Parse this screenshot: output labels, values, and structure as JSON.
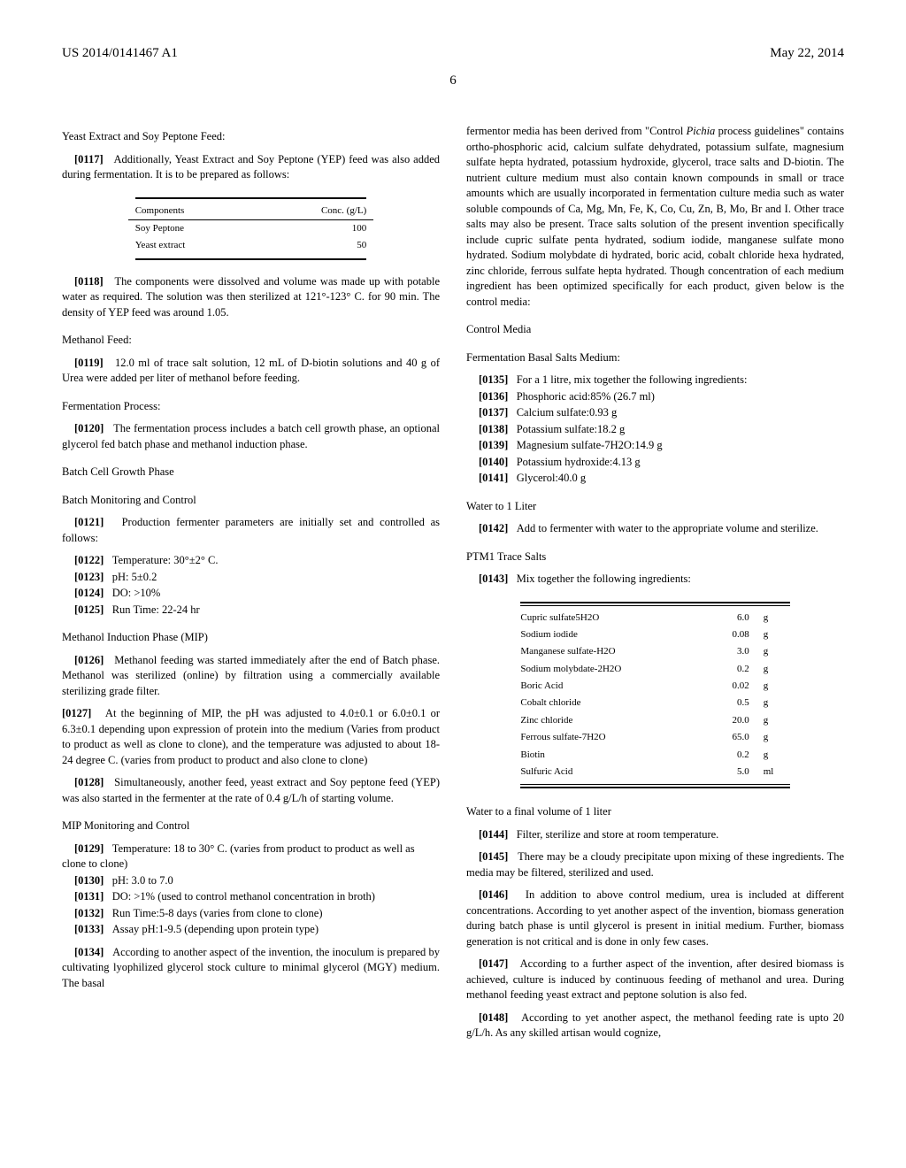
{
  "header": {
    "left": "US 2014/0141467 A1",
    "right": "May 22, 2014"
  },
  "page_number": "6",
  "left_column": {
    "s1_heading": "Yeast Extract and Soy Peptone Feed:",
    "p0117_num": "[0117]",
    "p0117": "Additionally, Yeast Extract and Soy Peptone (YEP) feed was also added during fermentation. It is to be prepared as follows:",
    "table1": {
      "col1": "Components",
      "col2": "Conc. (g/L)",
      "rows": [
        {
          "c1": "Soy Peptone",
          "c2": "100"
        },
        {
          "c1": "Yeast extract",
          "c2": "50"
        }
      ]
    },
    "p0118_num": "[0118]",
    "p0118": "The components were dissolved and volume was made up with potable water as required. The solution was then sterilized at 121°-123° C. for 90 min. The density of YEP feed was around 1.05.",
    "s2_heading": "Methanol Feed:",
    "p0119_num": "[0119]",
    "p0119": "12.0 ml of trace salt solution, 12 mL of D-biotin solutions and 40 g of Urea were added per liter of methanol before feeding.",
    "s3_heading": "Fermentation Process:",
    "p0120_num": "[0120]",
    "p0120": "The fermentation process includes a batch cell growth phase, an optional glycerol fed batch phase and methanol induction phase.",
    "s4_heading": "Batch Cell Growth Phase",
    "s5_heading": "Batch Monitoring and Control",
    "p0121_num": "[0121]",
    "p0121": "Production fermenter parameters are initially set and controlled as follows:",
    "p0122_num": "[0122]",
    "p0122": "Temperature: 30°±2° C.",
    "p0123_num": "[0123]",
    "p0123": "pH: 5±0.2",
    "p0124_num": "[0124]",
    "p0124": "DO: >10%",
    "p0125_num": "[0125]",
    "p0125": "Run Time: 22-24 hr",
    "s6_heading": "Methanol Induction Phase (MIP)",
    "p0126_num": "[0126]",
    "p0126": "Methanol feeding was started immediately after the end of Batch phase. Methanol was sterilized (online) by filtration using a commercially available sterilizing grade filter.",
    "p0127_num": "[0127]",
    "p0127": "At the beginning of MIP, the pH was adjusted to 4.0±0.1 or 6.0±0.1 or 6.3±0.1 depending upon expression of protein into the medium (Varies from product to product as well as clone to clone), and the temperature was adjusted to about 18-24 degree C. (varies from product to product and also clone to clone)",
    "p0128_num": "[0128]",
    "p0128": "Simultaneously, another feed, yeast extract and Soy peptone feed (YEP) was also started in the fermenter at the rate of 0.4 g/L/h of starting volume.",
    "s7_heading": "MIP Monitoring and Control",
    "p0129_num": "[0129]",
    "p0129": "Temperature: 18 to 30° C. (varies from product to product as well as clone to clone)",
    "p0130_num": "[0130]",
    "p0130": "pH: 3.0 to 7.0",
    "p0131_num": "[0131]",
    "p0131": "DO: >1% (used to control methanol concentration in broth)",
    "p0132_num": "[0132]",
    "p0132": "Run Time:5-8 days (varies from clone to clone)",
    "p0133_num": "[0133]",
    "p0133": "Assay pH:1-9.5 (depending upon protein type)",
    "p0134_num": "[0134]",
    "p0134": "According to another aspect of the invention, the inoculum is prepared by cultivating lyophilized glycerol stock culture to minimal glycerol (MGY) medium. The basal"
  },
  "right_column": {
    "p_cont_a": "fermentor media has been derived from \"Control ",
    "p_cont_italic": "Pichia",
    "p_cont_b": " process guidelines\" contains ortho-phosphoric acid, calcium sulfate dehydrated, potassium sulfate, magnesium sulfate hepta hydrated, potassium hydroxide, glycerol, trace salts and D-biotin. The nutrient culture medium must also contain known compounds in small or trace amounts which are usually incorporated in fermentation culture media such as water soluble compounds of Ca, Mg, Mn, Fe, K, Co, Cu, Zn, B, Mo, Br and I. Other trace salts may also be present. Trace salts solution of the present invention specifically include cupric sulfate penta hydrated, sodium iodide, manganese sulfate mono hydrated. Sodium molybdate di hydrated, boric acid, cobalt chloride hexa hydrated, zinc chloride, ferrous sulfate hepta hydrated. Though concentration of each medium ingredient has been optimized specifically for each product, given below is the control media:",
    "s1_heading": "Control Media",
    "s2_heading": "Fermentation Basal Salts Medium:",
    "p0135_num": "[0135]",
    "p0135": "For a 1 litre, mix together the following ingredients:",
    "p0136_num": "[0136]",
    "p0136": "Phosphoric acid:85% (26.7 ml)",
    "p0137_num": "[0137]",
    "p0137": "Calcium sulfate:0.93 g",
    "p0138_num": "[0138]",
    "p0138": "Potassium sulfate:18.2 g",
    "p0139_num": "[0139]",
    "p0139": "Magnesium sulfate-7H2O:14.9 g",
    "p0140_num": "[0140]",
    "p0140": "Potassium hydroxide:4.13 g",
    "p0141_num": "[0141]",
    "p0141": "Glycerol:40.0 g",
    "s3_heading": "Water to 1 Liter",
    "p0142_num": "[0142]",
    "p0142": "Add to fermenter with water to the appropriate volume and sterilize.",
    "s4_heading": "PTM1 Trace Salts",
    "p0143_num": "[0143]",
    "p0143": "Mix together the following ingredients:",
    "table2": {
      "rows": [
        {
          "c1": "Cupric sulfate5H2O",
          "c2": "6.0",
          "c3": "g"
        },
        {
          "c1": "Sodium iodide",
          "c2": "0.08",
          "c3": "g"
        },
        {
          "c1": "Manganese sulfate-H2O",
          "c2": "3.0",
          "c3": "g"
        },
        {
          "c1": "Sodium molybdate-2H2O",
          "c2": "0.2",
          "c3": "g"
        },
        {
          "c1": "Boric Acid",
          "c2": "0.02",
          "c3": "g"
        },
        {
          "c1": "Cobalt chloride",
          "c2": "0.5",
          "c3": "g"
        },
        {
          "c1": "Zinc chloride",
          "c2": "20.0",
          "c3": "g"
        },
        {
          "c1": "Ferrous sulfate-7H2O",
          "c2": "65.0",
          "c3": "g"
        },
        {
          "c1": "Biotin",
          "c2": "0.2",
          "c3": "g"
        },
        {
          "c1": "Sulfuric Acid",
          "c2": "5.0",
          "c3": "ml"
        }
      ]
    },
    "s5_heading": "Water to a final volume of 1 liter",
    "p0144_num": "[0144]",
    "p0144": "Filter, sterilize and store at room temperature.",
    "p0145_num": "[0145]",
    "p0145": "There may be a cloudy precipitate upon mixing of these ingredients. The media may be filtered, sterilized and used.",
    "p0146_num": "[0146]",
    "p0146": "In addition to above control medium, urea is included at different concentrations. According to yet another aspect of the invention, biomass generation during batch phase is until glycerol is present in initial medium. Further, biomass generation is not critical and is done in only few cases.",
    "p0147_num": "[0147]",
    "p0147": "According to a further aspect of the invention, after desired biomass is achieved, culture is induced by continuous feeding of methanol and urea. During methanol feeding yeast extract and peptone solution is also fed.",
    "p0148_num": "[0148]",
    "p0148": "According to yet another aspect, the methanol feeding rate is upto 20 g/L/h. As any skilled artisan would cognize,"
  }
}
